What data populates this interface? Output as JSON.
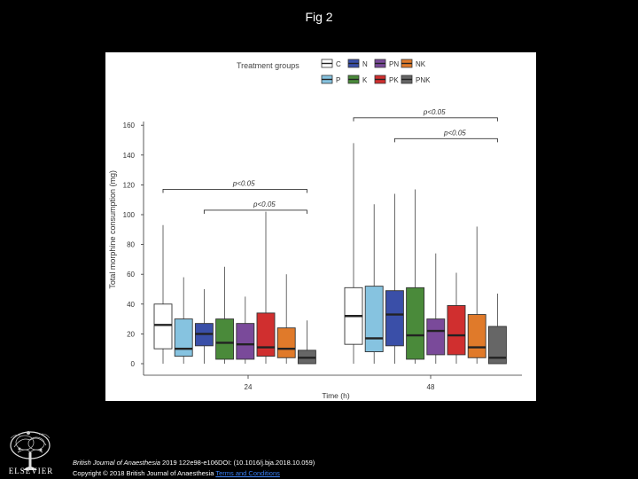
{
  "slide": {
    "title": "Fig 2"
  },
  "legend": {
    "title": "Treatment groups",
    "entries": [
      {
        "label": "C",
        "color": "#ffffff"
      },
      {
        "label": "N",
        "color": "#3a4fa8"
      },
      {
        "label": "PN",
        "color": "#7a4a9a"
      },
      {
        "label": "NK",
        "color": "#e07a2a"
      },
      {
        "label": "P",
        "color": "#86c3e0"
      },
      {
        "label": "K",
        "color": "#4a8a3a"
      },
      {
        "label": "PK",
        "color": "#d02f2f"
      },
      {
        "label": "PNK",
        "color": "#666666"
      }
    ]
  },
  "chart_data": {
    "type": "box",
    "title": "",
    "xlabel": "Time (h)",
    "ylabel": "Total morphine consumption (mg)",
    "ylim": [
      0,
      170
    ],
    "yticks": [
      0,
      20,
      40,
      60,
      80,
      100,
      120,
      140,
      160
    ],
    "categories": [
      "24",
      "48"
    ],
    "groups": [
      "C",
      "P",
      "N",
      "K",
      "PN",
      "PK",
      "NK",
      "PNK"
    ],
    "colors": [
      "#ffffff",
      "#86c3e0",
      "#3a4fa8",
      "#4a8a3a",
      "#7a4a9a",
      "#d02f2f",
      "#e07a2a",
      "#666666"
    ],
    "series": [
      {
        "category": "24",
        "boxes": [
          {
            "group": "C",
            "min": 0,
            "q1": 10,
            "median": 26,
            "q3": 40,
            "max": 93
          },
          {
            "group": "P",
            "min": 0,
            "q1": 5,
            "median": 10,
            "q3": 30,
            "max": 58
          },
          {
            "group": "N",
            "min": 0,
            "q1": 12,
            "median": 20,
            "q3": 27,
            "max": 50
          },
          {
            "group": "K",
            "min": 0,
            "q1": 3,
            "median": 14,
            "q3": 30,
            "max": 65
          },
          {
            "group": "PN",
            "min": 0,
            "q1": 3,
            "median": 13,
            "q3": 27,
            "max": 45
          },
          {
            "group": "PK",
            "min": 0,
            "q1": 5,
            "median": 11,
            "q3": 34,
            "max": 102
          },
          {
            "group": "NK",
            "min": 0,
            "q1": 4,
            "median": 10,
            "q3": 24,
            "max": 60
          },
          {
            "group": "PNK",
            "min": 0,
            "q1": 0,
            "median": 4,
            "q3": 9,
            "max": 29
          }
        ]
      },
      {
        "category": "48",
        "boxes": [
          {
            "group": "C",
            "min": 0,
            "q1": 13,
            "median": 32,
            "q3": 51,
            "max": 148
          },
          {
            "group": "P",
            "min": 0,
            "q1": 8,
            "median": 17,
            "q3": 52,
            "max": 107
          },
          {
            "group": "N",
            "min": 0,
            "q1": 12,
            "median": 33,
            "q3": 49,
            "max": 114
          },
          {
            "group": "K",
            "min": 0,
            "q1": 3,
            "median": 19,
            "q3": 51,
            "max": 117
          },
          {
            "group": "PN",
            "min": 0,
            "q1": 6,
            "median": 22,
            "q3": 30,
            "max": 74
          },
          {
            "group": "PK",
            "min": 0,
            "q1": 6,
            "median": 19,
            "q3": 39,
            "max": 61
          },
          {
            "group": "NK",
            "min": 0,
            "q1": 4,
            "median": 11,
            "q3": 33,
            "max": 92
          },
          {
            "group": "PNK",
            "min": 0,
            "q1": 0,
            "median": 4,
            "q3": 25,
            "max": 47
          }
        ]
      }
    ],
    "annotations": [
      {
        "text": "p<0.05",
        "category": "24",
        "from_group": "C",
        "to_group": "PNK",
        "y": 117
      },
      {
        "text": "p<0.05",
        "category": "24",
        "from_group": "N",
        "to_group": "PNK",
        "y": 103
      },
      {
        "text": "p<0.05",
        "category": "48",
        "from_group": "C",
        "to_group": "PNK",
        "y": 165
      },
      {
        "text": "p<0.05",
        "category": "48",
        "from_group": "N",
        "to_group": "PNK",
        "y": 151
      }
    ]
  },
  "footer": {
    "publisher": "ELSEVIER",
    "journal": "British Journal of Anaesthesia",
    "citation_rest": " 2019 122e98-e106DOI: (10.1016/j.bja.2018.10.059)",
    "copyright": "Copyright © 2018 British Journal of Anaesthesia ",
    "terms": "Terms and Conditions"
  }
}
